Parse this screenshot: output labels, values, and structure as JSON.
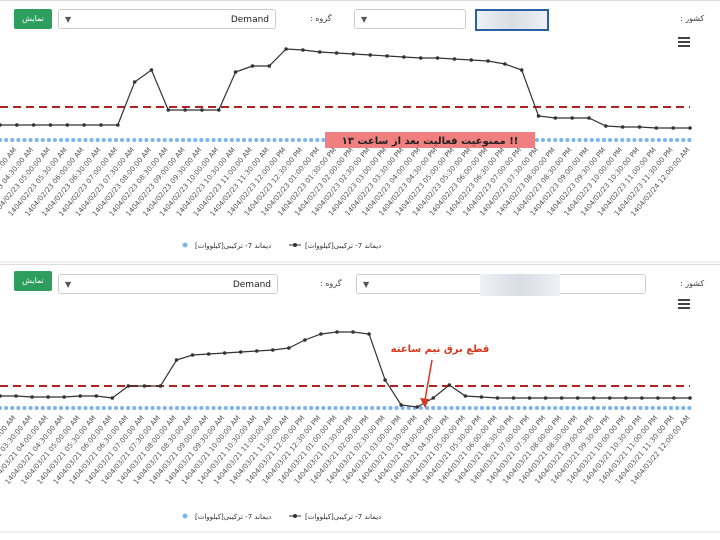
{
  "toolbars": [
    {
      "button": "نمایش",
      "select": "Demand",
      "group_label": "گروه :",
      "country_label": "کشور :"
    },
    {
      "button": "نمایش",
      "select": "Demand",
      "group_label": "گروه :",
      "country_label": "کشور :"
    }
  ],
  "chart_data": [
    {
      "type": "line",
      "ylim": [
        0,
        110
      ],
      "annotation": "ممنوعیت فعالیت بعد از ساعت ۱۳ !!",
      "categories": [
        "1404/02/23 03:30:00 AM",
        "1404/02/23 04:00:00 AM",
        "1404/02/23 04:30:00 AM",
        "1404/02/23 05:00:00 AM",
        "1404/02/23 05:30:00 AM",
        "1404/02/23 06:00:00 AM",
        "1404/02/23 06:30:00 AM",
        "1404/02/23 07:00:00 AM",
        "1404/02/23 07:30:00 AM",
        "1404/02/23 08:00:00 AM",
        "1404/02/23 08:30:00 AM",
        "1404/02/23 09:00:00 AM",
        "1404/02/23 09:30:00 AM",
        "1404/02/23 10:00:00 AM",
        "1404/02/23 10:30:00 AM",
        "1404/02/23 11:00:00 AM",
        "1404/02/23 11:30:00 AM",
        "1404/02/23 12:00:00 PM",
        "1404/02/23 12:30:00 PM",
        "1404/02/23 01:00:00 PM",
        "1404/02/23 01:30:00 PM",
        "1404/02/23 02:00:00 PM",
        "1404/02/23 02:30:00 PM",
        "1404/02/23 03:00:00 PM",
        "1404/02/23 03:30:00 PM",
        "1404/02/23 04:00:00 PM",
        "1404/02/23 04:30:00 PM",
        "1404/02/23 05:00:00 PM",
        "1404/02/23 05:30:00 PM",
        "1404/02/23 06:00:00 PM",
        "1404/02/23 06:30:00 PM",
        "1404/02/23 07:00:00 PM",
        "1404/02/23 07:30:00 PM",
        "1404/02/23 08:00:00 PM",
        "1404/02/23 08:30:00 PM",
        "1404/02/23 09:00:00 PM",
        "1404/02/23 09:30:00 PM",
        "1404/02/23 10:00:00 PM",
        "1404/02/23 10:30:00 PM",
        "1404/02/23 11:00:00 PM",
        "1404/02/23 11:30:00 PM",
        "1404/02/24 12:00:00 AM"
      ],
      "reference_lines": [
        {
          "value": 35,
          "color": "#b22222"
        }
      ],
      "series": [
        {
          "name": "دیماند 7- ترکیبی[کیلووات]",
          "color": "#7cb5ec",
          "values": [
            2,
            2,
            2,
            2,
            2,
            2,
            2,
            2,
            2,
            2,
            2,
            2,
            2,
            2,
            2,
            2,
            2,
            2,
            2,
            2,
            2,
            2,
            2,
            2,
            2,
            2,
            2,
            2,
            2,
            2,
            2,
            2,
            2,
            2,
            2,
            2,
            2,
            2,
            2,
            2,
            2,
            2
          ]
        },
        {
          "name": "دیماند 7- ترکیبی[کیلووات]",
          "color": "#333333",
          "values": [
            17,
            17,
            17,
            17,
            17,
            17,
            17,
            17,
            60,
            72,
            32,
            32,
            32,
            32,
            70,
            76,
            76,
            93,
            92,
            90,
            89,
            88,
            87,
            86,
            85,
            84,
            84,
            83,
            82,
            81,
            78,
            72,
            26,
            24,
            24,
            24,
            16,
            15,
            15,
            14,
            14,
            14
          ]
        }
      ]
    },
    {
      "type": "line",
      "ylim": [
        0,
        100
      ],
      "annotation": "قطع برق نیم ساعته",
      "categories": [
        "1404/03/21 02:30:00 AM",
        "1404/03/21 03:00:00 AM",
        "1404/03/21 03:30:00 AM",
        "1404/03/21 04:00:00 AM",
        "1404/03/21 04:30:00 AM",
        "1404/03/21 05:00:00 AM",
        "1404/03/21 05:30:00 AM",
        "1404/03/21 06:00:00 AM",
        "1404/03/21 06:30:00 AM",
        "1404/03/21 07:00:00 AM",
        "1404/03/21 07:30:00 AM",
        "1404/03/21 08:00:00 AM",
        "1404/03/21 08:30:00 AM",
        "1404/03/21 09:00:00 AM",
        "1404/03/21 09:30:00 AM",
        "1404/03/21 10:00:00 AM",
        "1404/03/21 10:30:00 AM",
        "1404/03/21 11:00:00 AM",
        "1404/03/21 11:30:00 AM",
        "1404/03/21 12:00:00 PM",
        "1404/03/21 12:30:00 PM",
        "1404/03/21 01:00:00 PM",
        "1404/03/21 01:30:00 PM",
        "1404/03/21 02:00:00 PM",
        "1404/03/21 02:30:00 PM",
        "1404/03/21 03:00:00 PM",
        "1404/03/21 03:30:00 PM",
        "1404/03/21 04:00:00 PM",
        "1404/03/21 04:30:00 PM",
        "1404/03/21 05:00:00 PM",
        "1404/03/21 05:30:00 PM",
        "1404/03/21 06:00:00 PM",
        "1404/03/21 06:30:00 PM",
        "1404/03/21 07:00:00 PM",
        "1404/03/21 07:30:00 PM",
        "1404/03/21 08:00:00 PM",
        "1404/03/21 08:30:00 PM",
        "1404/03/21 09:00:00 PM",
        "1404/03/21 09:30:00 PM",
        "1404/03/21 10:00:00 PM",
        "1404/03/21 10:30:00 PM",
        "1404/03/21 11:00:00 PM",
        "1404/03/21 11:30:00 PM",
        "1404/03/22 12:00:00 AM"
      ],
      "reference_lines": [
        {
          "value": 24,
          "color": "#b22222"
        }
      ],
      "series": [
        {
          "name": "دیماند 7- ترکیبی[کیلووات]",
          "color": "#7cb5ec",
          "values": [
            2,
            2,
            2,
            2,
            2,
            2,
            2,
            2,
            2,
            2,
            2,
            2,
            2,
            2,
            2,
            2,
            2,
            2,
            2,
            2,
            2,
            2,
            2,
            2,
            2,
            2,
            2,
            2,
            2,
            2,
            2,
            2,
            2,
            2,
            2,
            2,
            2,
            2,
            2,
            2,
            2,
            2,
            2,
            2
          ]
        },
        {
          "name": "دیماند 7- ترکیبی[کیلووات]",
          "color": "#333333",
          "values": [
            14,
            14,
            13,
            13,
            13,
            14,
            14,
            12,
            24,
            24,
            24,
            50,
            55,
            56,
            57,
            58,
            59,
            60,
            62,
            70,
            76,
            78,
            78,
            76,
            30,
            5,
            3,
            12,
            25,
            14,
            13,
            12,
            12,
            12,
            12,
            12,
            12,
            12,
            12,
            12,
            12,
            12,
            12,
            12
          ]
        }
      ]
    }
  ]
}
